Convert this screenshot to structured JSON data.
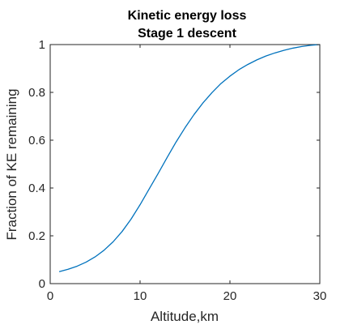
{
  "chart_data": {
    "type": "line",
    "title": [
      "Kinetic energy loss",
      "Stage 1 descent"
    ],
    "xlabel": "Altitude,km",
    "ylabel": "Fraction of KE remaining",
    "xlim": [
      0,
      30
    ],
    "ylim": [
      0,
      1
    ],
    "xticks": [
      0,
      10,
      20,
      30
    ],
    "yticks": [
      0,
      0.2,
      0.4,
      0.6,
      0.8,
      1
    ],
    "grid": false,
    "series": [
      {
        "color": "#0072BD",
        "x": [
          1,
          2,
          3,
          4,
          5,
          6,
          7,
          8,
          9,
          10,
          11,
          12,
          13,
          14,
          15,
          16,
          17,
          18,
          19,
          20,
          21,
          22,
          23,
          24,
          25,
          26,
          27,
          28,
          29,
          30
        ],
        "y": [
          0.05,
          0.06,
          0.073,
          0.09,
          0.112,
          0.14,
          0.175,
          0.218,
          0.27,
          0.33,
          0.395,
          0.46,
          0.527,
          0.592,
          0.652,
          0.707,
          0.756,
          0.799,
          0.837,
          0.868,
          0.895,
          0.917,
          0.936,
          0.952,
          0.965,
          0.976,
          0.985,
          0.992,
          0.997,
          1.0
        ]
      }
    ]
  }
}
